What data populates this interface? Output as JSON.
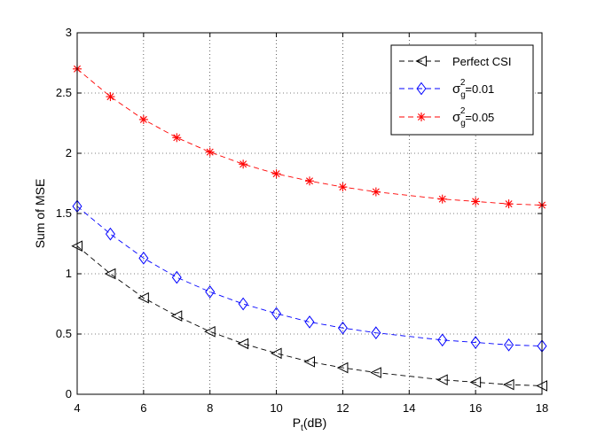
{
  "chart_data": {
    "type": "line",
    "title": "",
    "xlabel_base": "P",
    "xlabel_sub": "t",
    "xlabel_rest": "(dB)",
    "ylabel": "Sum of MSE",
    "xlim": [
      4,
      18
    ],
    "ylim": [
      0,
      3
    ],
    "xticks": [
      4,
      6,
      8,
      10,
      12,
      14,
      16,
      18
    ],
    "yticks": [
      0,
      0.5,
      1,
      1.5,
      2,
      2.5,
      3
    ],
    "xtick_labels": [
      "4",
      "6",
      "8",
      "10",
      "12",
      "14",
      "16",
      "18"
    ],
    "ytick_labels": [
      "0",
      "0.5",
      "1",
      "1.5",
      "2",
      "2.5",
      "3"
    ],
    "grid": true,
    "legend_position": "top-right",
    "series": [
      {
        "legend_label": "Perfect CSI",
        "legend_parts": [
          "Perfect CSI",
          "",
          "",
          ""
        ],
        "color": "#000000",
        "marker": "triangle-left",
        "x": [
          4,
          5,
          6,
          7,
          8,
          9,
          10,
          11,
          12,
          13,
          15,
          16,
          17,
          18
        ],
        "y": [
          1.23,
          1.0,
          0.8,
          0.65,
          0.52,
          0.42,
          0.34,
          0.27,
          0.22,
          0.18,
          0.12,
          0.1,
          0.08,
          0.07
        ]
      },
      {
        "legend_label": "σg2=0.01",
        "legend_parts": [
          "σ",
          "g",
          "2",
          "=0.01"
        ],
        "color": "#0000ff",
        "marker": "diamond",
        "x": [
          4,
          5,
          6,
          7,
          8,
          9,
          10,
          11,
          12,
          13,
          15,
          16,
          17,
          18
        ],
        "y": [
          1.56,
          1.33,
          1.13,
          0.97,
          0.85,
          0.75,
          0.67,
          0.6,
          0.55,
          0.51,
          0.45,
          0.43,
          0.41,
          0.4
        ]
      },
      {
        "legend_label": "σg2=0.05",
        "legend_parts": [
          "σ",
          "g",
          "2",
          "=0.05"
        ],
        "color": "#ff0000",
        "marker": "asterisk",
        "x": [
          4,
          5,
          6,
          7,
          8,
          9,
          10,
          11,
          12,
          13,
          15,
          16,
          17,
          18
        ],
        "y": [
          2.7,
          2.47,
          2.28,
          2.13,
          2.01,
          1.91,
          1.83,
          1.77,
          1.72,
          1.68,
          1.62,
          1.6,
          1.58,
          1.57
        ]
      }
    ]
  }
}
